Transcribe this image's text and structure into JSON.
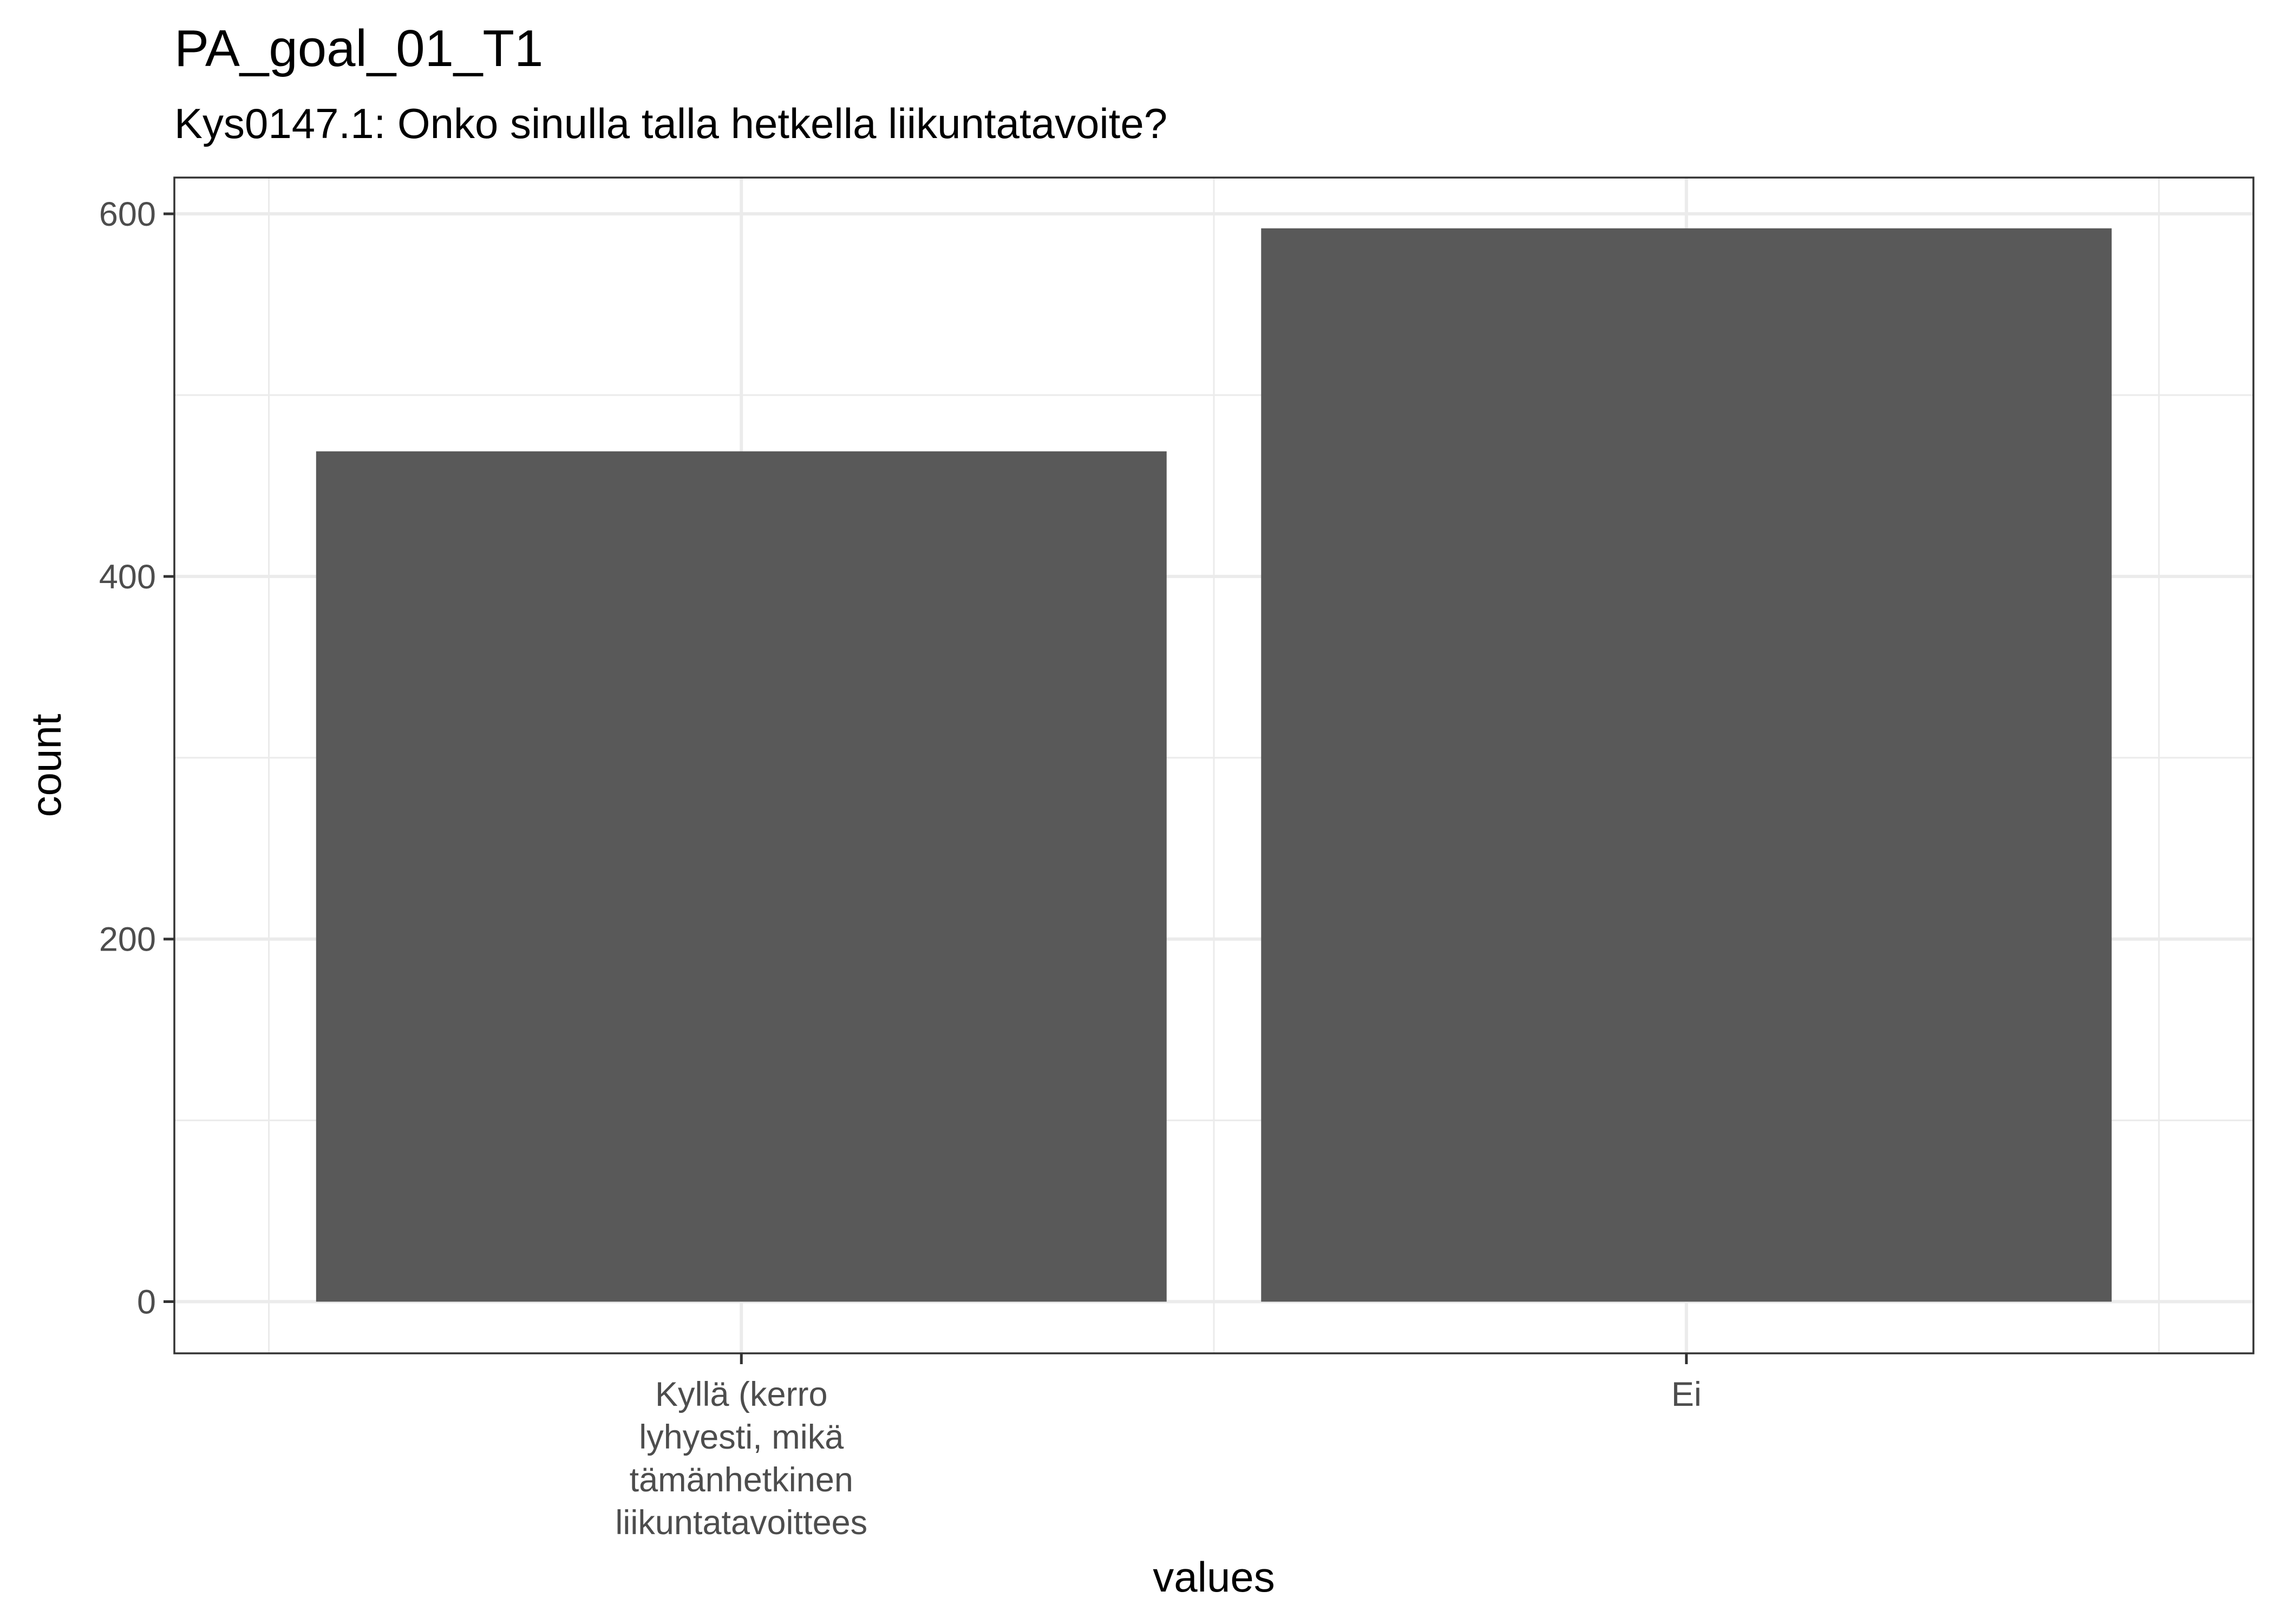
{
  "chart_data": {
    "type": "bar",
    "title": "PA_goal_01_T1",
    "subtitle": "Kys0147.1: Onko sinulla talla hetkella liikuntatavoite?",
    "xlabel": "values",
    "ylabel": "count",
    "categories": [
      [
        "Kyllä (kerro",
        "lyhyesti, mikä",
        "tämänhetkinen",
        "liikuntatavoittees"
      ],
      [
        "Ei"
      ]
    ],
    "values": [
      469,
      592
    ],
    "ylim": [
      -28.5,
      620
    ],
    "yticks": [
      0,
      200,
      400,
      600
    ],
    "grid": true,
    "bar_color": "#595959"
  }
}
